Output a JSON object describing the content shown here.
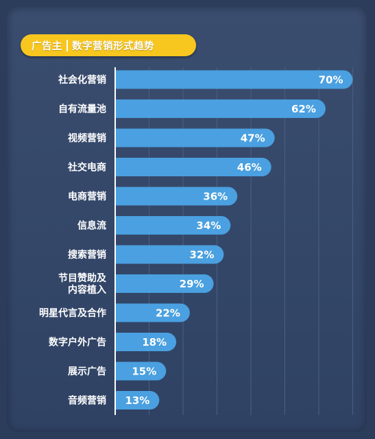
{
  "title": {
    "part1": "广告主",
    "part2": "数字营销形式趋势"
  },
  "colors": {
    "background": "#2b3d5b",
    "panel": "#34476a",
    "bar": "#4aa0e0",
    "title_pill": "#f7c61f",
    "text": "#ffffff"
  },
  "chart_data": {
    "type": "bar",
    "orientation": "horizontal",
    "categories": [
      [
        "社会化营销"
      ],
      [
        "自有流量池"
      ],
      [
        "视频营销"
      ],
      [
        "社交电商"
      ],
      [
        "电商营销"
      ],
      [
        "信息流"
      ],
      [
        "搜索营销"
      ],
      [
        "节目赞助及",
        "内容植入"
      ],
      [
        "明星代言及合作"
      ],
      [
        "数字户外广告"
      ],
      [
        "展示广告"
      ],
      [
        "音频营销"
      ]
    ],
    "values": [
      70,
      62,
      47,
      46,
      36,
      34,
      32,
      29,
      22,
      18,
      15,
      13
    ],
    "value_labels": [
      "70%",
      "62%",
      "47%",
      "46%",
      "36%",
      "34%",
      "32%",
      "29%",
      "22%",
      "18%",
      "15%",
      "13%"
    ],
    "xlim": [
      0,
      70
    ],
    "grid": true,
    "legend": "none"
  }
}
